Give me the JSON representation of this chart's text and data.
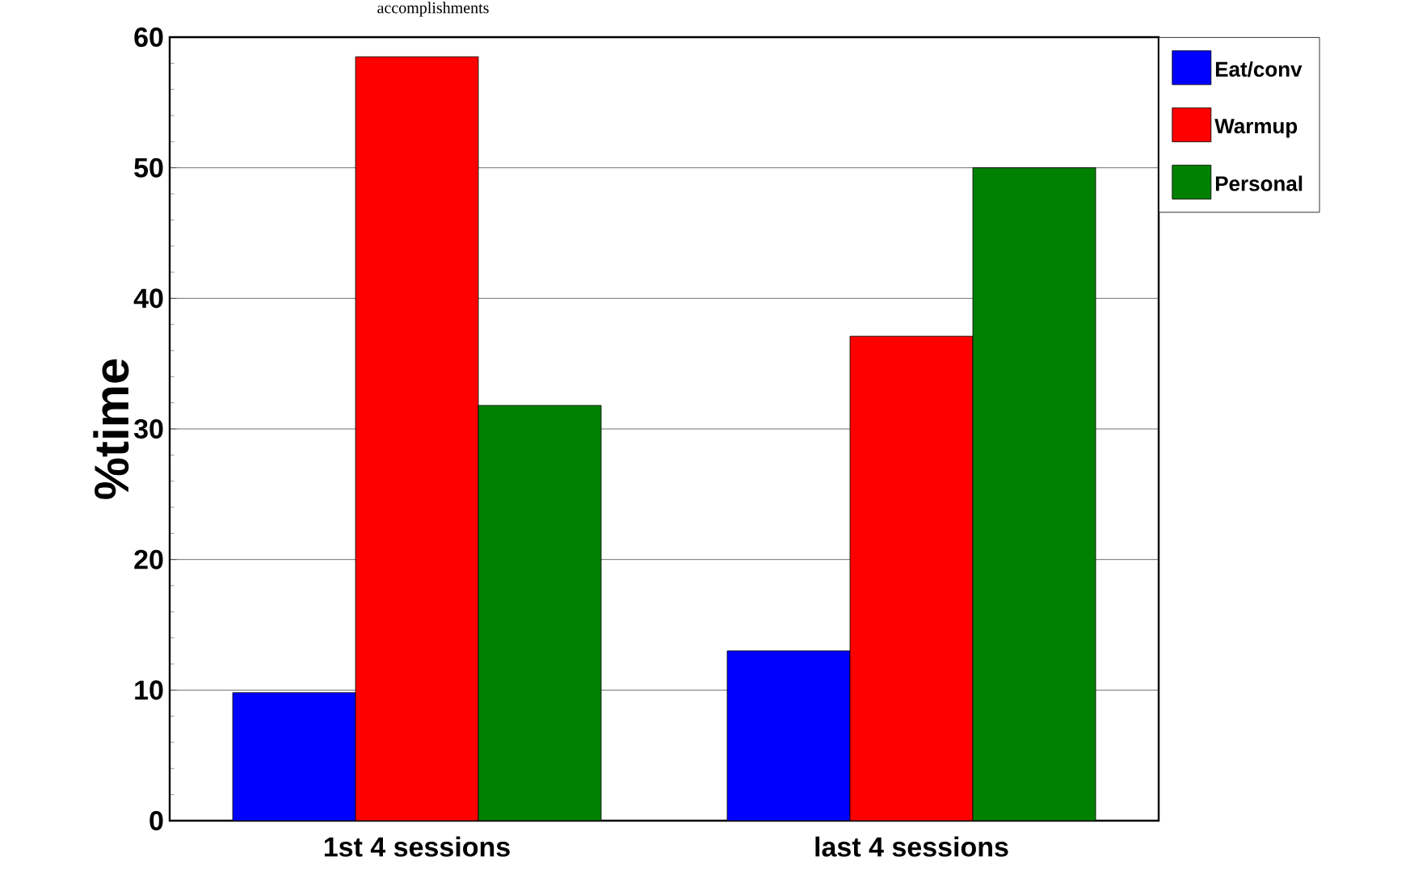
{
  "chart_data": {
    "type": "bar",
    "ylabel": "%time",
    "categories": [
      "1st 4 sessions",
      "last 4 sessions"
    ],
    "series": [
      {
        "name": "Eat/conv",
        "color": "#0000ff",
        "values": [
          9.8,
          13.0
        ]
      },
      {
        "name": "Warmup",
        "color": "#ff0000",
        "values": [
          58.5,
          37.1
        ]
      },
      {
        "name": "Personal",
        "color": "#008000",
        "values": [
          31.8,
          50.0
        ]
      }
    ],
    "ylim": [
      0,
      60
    ],
    "yticks": [
      0,
      10,
      20,
      30,
      40,
      50,
      60
    ],
    "grid": "y",
    "legend": "top right",
    "annotations": [
      "accomplishments"
    ]
  }
}
